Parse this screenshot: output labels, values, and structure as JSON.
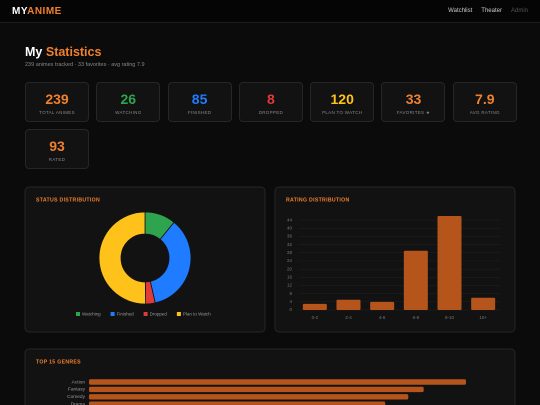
{
  "nav": {
    "logo_a": "MY",
    "logo_b": "ANIME",
    "links": [
      "Watchlist",
      "Theater",
      "Admin"
    ]
  },
  "header": {
    "title_a": "My",
    "title_b": "Statistics",
    "subtitle": "239 animes tracked · 33 favorites · avg rating 7.9"
  },
  "stats": [
    {
      "value": 239,
      "label": "TOTAL ANIMES",
      "color": "#f0802e"
    },
    {
      "value": 26,
      "label": "WATCHING",
      "color": "#2ea44f"
    },
    {
      "value": 85,
      "label": "FINISHED",
      "color": "#1f7bff"
    },
    {
      "value": 8,
      "label": "DROPPED",
      "color": "#e03a3a"
    },
    {
      "value": 120,
      "label": "PLAN TO WATCH",
      "color": "#ffc21a"
    },
    {
      "value": 33,
      "label": "FAVORITES ★",
      "color": "#f0802e"
    },
    {
      "value": 7.9,
      "label": "AVG RATING",
      "color": "#f0802e"
    },
    {
      "value": 93,
      "label": "RATED",
      "color": "#f0802e"
    }
  ],
  "chart_data": [
    {
      "type": "pie",
      "title": "STATUS DISTRIBUTION",
      "categories": [
        "Watching",
        "Finished",
        "Dropped",
        "Plan to Watch"
      ],
      "values": [
        26,
        85,
        8,
        120
      ],
      "colors": [
        "#2ea44f",
        "#1f7bff",
        "#e03a3a",
        "#ffc21a"
      ],
      "donut": true,
      "legend": "bottom"
    },
    {
      "type": "bar",
      "title": "RATING DISTRIBUTION",
      "categories": [
        "0-2",
        "2-4",
        "4-6",
        "6-8",
        "8-10",
        "10+"
      ],
      "values": [
        3,
        5,
        4,
        29,
        46,
        6
      ],
      "color": "#b5551c",
      "ylim": [
        0,
        46
      ],
      "yticks": [
        0,
        4,
        8,
        12,
        16,
        20,
        24,
        28,
        32,
        36,
        40,
        44
      ],
      "grid": true
    },
    {
      "type": "barh",
      "title": "TOP 15 GENRES",
      "categories": [
        "Action",
        "Fantasy",
        "Comedy",
        "Drama"
      ],
      "values": [
        98,
        87,
        83,
        77
      ],
      "color": "#b5551c"
    }
  ]
}
